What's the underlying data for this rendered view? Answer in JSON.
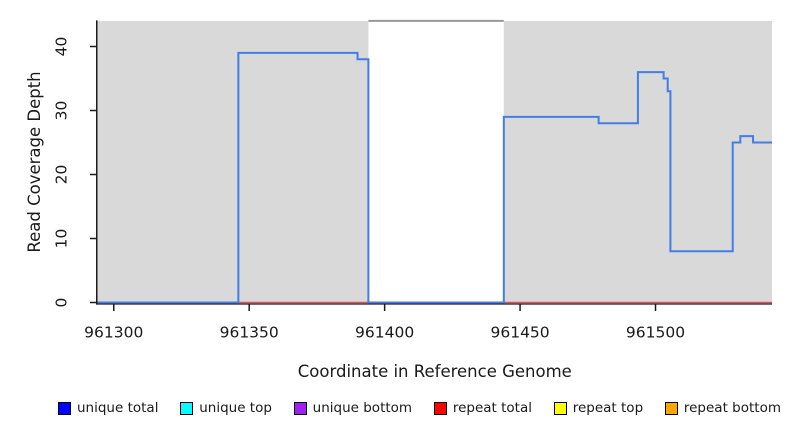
{
  "figure": {
    "background": "#ffffff",
    "plot_background": "#d9d9d9",
    "axis_color": "#1a1a1a",
    "text_color": "#1a1a1a"
  },
  "chart_data": {
    "type": "line",
    "title": "",
    "xlabel": "Coordinate in Reference Genome",
    "ylabel": "Read Coverage Depth",
    "xlim": [
      961294,
      961543
    ],
    "ylim": [
      0,
      44
    ],
    "xticks": [
      961300,
      961350,
      961400,
      961450,
      961500
    ],
    "yticks": [
      0,
      10,
      20,
      30,
      40
    ],
    "grid": false,
    "legend_position": "bottom",
    "background_shading": {
      "color": "#d9d9d9",
      "unique_regions": [
        [
          961294,
          961394
        ],
        [
          961444,
          961543
        ]
      ],
      "gap_region": [
        961394,
        961444
      ],
      "gap_top_line_color": "#999999"
    },
    "series": [
      {
        "name": "unique total",
        "color": "#437de8",
        "line_width": 2,
        "steps": [
          [
            961294,
            0
          ],
          [
            961346,
            39
          ],
          [
            961390,
            38
          ],
          [
            961394,
            0
          ],
          [
            961444,
            29
          ],
          [
            961479,
            28
          ],
          [
            961493.5,
            36
          ],
          [
            961503,
            35
          ],
          [
            961504.5,
            33
          ],
          [
            961505.5,
            8
          ],
          [
            961528.5,
            25
          ],
          [
            961531.3,
            26
          ],
          [
            961536,
            25
          ]
        ]
      },
      {
        "name": "repeat total",
        "color": "#e34f5b",
        "line_width": 1.4,
        "steps": [
          [
            961294,
            0
          ]
        ]
      }
    ],
    "legend": [
      {
        "label": "unique total",
        "color": "#0000ff"
      },
      {
        "label": "unique top",
        "color": "#00ffff"
      },
      {
        "label": "unique bottom",
        "color": "#a020f0"
      },
      {
        "label": "repeat total",
        "color": "#ff0000"
      },
      {
        "label": "repeat top",
        "color": "#ffff00"
      },
      {
        "label": "repeat bottom",
        "color": "#ffa500"
      }
    ]
  }
}
